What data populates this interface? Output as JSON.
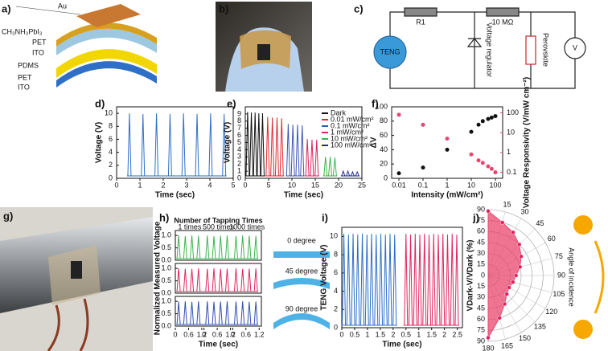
{
  "panel_labels": [
    "a)",
    "b)",
    "c)",
    "d)",
    "e)",
    "f)",
    "g)",
    "h)",
    "i)",
    "j)"
  ],
  "panel_a": {
    "layers": [
      "Au",
      "CH₃NH₃PbI₃",
      "PET",
      "ITO",
      "PDMS",
      "PET",
      "ITO"
    ]
  },
  "panel_c": {
    "labels": [
      "TENG",
      "R1",
      "10 MΩ",
      "Voltage regulator",
      "Perovskite",
      "V"
    ]
  },
  "panel_h_side": {
    "labels": [
      "0 degree",
      "45 degree",
      "90 degree"
    ]
  },
  "panel_j_side": {
    "label": "Angle of incidence"
  },
  "chart_data": [
    {
      "type": "pulse",
      "xlabel": "Time (sec)",
      "ylabel": "Voltage (V)",
      "xlim": [
        0,
        5
      ],
      "xticks": [
        0,
        1,
        2,
        3,
        4,
        5
      ],
      "ylim": [
        0,
        11
      ],
      "yticks": [
        0,
        2,
        4,
        6,
        8,
        10
      ],
      "series": [
        {
          "color": "#2f6fc6",
          "x": [
            0.55,
            1.13,
            1.71,
            2.29,
            2.87,
            3.45,
            4.03,
            4.61
          ],
          "values": [
            10,
            9.9,
            10,
            9.9,
            10,
            9.9,
            10,
            9.9
          ]
        }
      ]
    },
    {
      "type": "pulse",
      "xlabel": "Time (sec)",
      "ylabel": "Voltage (V)",
      "xlim": [
        0,
        25
      ],
      "xticks": [
        0,
        5,
        10,
        15,
        20,
        25
      ],
      "ylim": [
        0,
        10
      ],
      "yticks": [
        0,
        1,
        2,
        3,
        4,
        5,
        6,
        7,
        8,
        9
      ],
      "legend": "upper right",
      "series": [
        {
          "name": "Dark",
          "color": "#111111",
          "x": [
            0.5,
            1.3,
            2.1,
            2.9,
            3.7
          ],
          "values": [
            9.3,
            9.2,
            9.2,
            9.1,
            9.1
          ]
        },
        {
          "name": "0.01 mW/cm²",
          "color": "#e3262f",
          "x": [
            4.8,
            5.8,
            6.8,
            7.8
          ],
          "values": [
            8.6,
            8.5,
            8.5,
            8.4
          ]
        },
        {
          "name": "0.1 mW/cm²",
          "color": "#3a55b4",
          "x": [
            9.2,
            10.2,
            11.2,
            12.2
          ],
          "values": [
            7.6,
            7.5,
            7.5,
            7.4
          ]
        },
        {
          "name": "1 mW/cm²",
          "color": "#e0245e",
          "x": [
            13.3,
            14.3,
            15.3
          ],
          "values": [
            5.5,
            5.4,
            5.4
          ]
        },
        {
          "name": "10 mW/cm²",
          "color": "#3cb44b",
          "x": [
            17.2,
            18.2,
            19.2
          ],
          "values": [
            3,
            3,
            2.9
          ]
        },
        {
          "name": "100 mW/cm²",
          "color": "#1f2a8c",
          "x": [
            21,
            22,
            23,
            24
          ],
          "values": [
            1,
            1,
            0.9,
            0.9
          ]
        }
      ]
    },
    {
      "type": "scatter",
      "xlabel": "Intensity (mW/cm²)",
      "ylabel": "ΔV",
      "y2label": "Voltage Responsivity (V/mW cm⁻²)",
      "xscale": "log",
      "y2scale": "log",
      "xlim": [
        0.005,
        200
      ],
      "xticks": [
        0.01,
        0.1,
        1,
        10,
        100
      ],
      "ylim": [
        0,
        100
      ],
      "yticks": [
        0,
        20,
        40,
        60,
        80,
        100
      ],
      "y2lim": [
        0.05,
        200
      ],
      "y2ticks": [
        0.1,
        1,
        10,
        100
      ],
      "series": [
        {
          "color": "#111111",
          "x": [
            0.01,
            0.1,
            1,
            10,
            20,
            30,
            50,
            70,
            100
          ],
          "values": [
            7,
            15,
            40,
            65,
            75,
            80,
            83,
            85,
            87
          ]
        },
        {
          "color": "#e8466e",
          "axis": "y2",
          "x": [
            0.01,
            0.1,
            1,
            10,
            20,
            30,
            50,
            70,
            100
          ],
          "values": [
            80,
            25,
            5,
            0.8,
            0.4,
            0.3,
            0.2,
            0.15,
            0.1
          ]
        }
      ]
    },
    {
      "type": "bands",
      "title": "Number of Tapping Times",
      "group_labels": [
        "1 times",
        "500 times",
        "1000 times"
      ],
      "xlabel": "Time (sec)",
      "ylabel": "Normalized Measured Voltage",
      "xlim": [
        0,
        3.9
      ],
      "xticks": [
        0,
        0.6,
        1.2,
        {
          "value": 1.3,
          "label": "0"
        },
        {
          "value": 1.9,
          "label": "0.6"
        },
        {
          "value": 2.5,
          "label": "1.2"
        },
        {
          "value": 2.6,
          "label": "0"
        },
        {
          "value": 3.2,
          "label": "0.6"
        },
        {
          "value": 3.8,
          "label": "1.2"
        }
      ],
      "ylim": [
        0,
        1.2
      ],
      "yticks": [
        {
          "value": 0,
          "label": "0.0"
        },
        {
          "value": 0.5,
          "label": "0.5"
        },
        {
          "value": 1,
          "label": "1.0"
        }
      ],
      "series": [
        {
          "color": "#3cb44b",
          "x": [
            0.15,
            0.45,
            0.75,
            1.05,
            1.45,
            1.75,
            2.05,
            2.35,
            2.75,
            3.05,
            3.35,
            3.65
          ],
          "values": [
            1,
            0.98,
            1,
            0.99,
            1,
            0.97,
            0.99,
            1,
            0.98,
            1,
            0.99,
            0.98
          ]
        },
        {
          "color": "#e0245e",
          "x": [
            0.15,
            0.45,
            0.75,
            1.05,
            1.45,
            1.75,
            2.05,
            2.35,
            2.75,
            3.05,
            3.35,
            3.65
          ],
          "values": [
            1,
            0.99,
            0.98,
            1,
            0.99,
            1,
            0.98,
            0.99,
            1,
            0.98,
            0.99,
            1
          ]
        },
        {
          "color": "#2f4fb4",
          "x": [
            0.15,
            0.45,
            0.75,
            1.05,
            1.45,
            1.75,
            2.05,
            2.35,
            2.75,
            3.05,
            3.35,
            3.65
          ],
          "values": [
            0.99,
            1,
            0.98,
            1,
            1,
            0.98,
            0.99,
            1,
            0.99,
            1,
            0.98,
            0.99
          ]
        }
      ]
    },
    {
      "type": "pulse",
      "xlabel": "Time (sec)",
      "ylabel": "TENG Voltage (V)",
      "xlim": [
        0,
        4.7
      ],
      "xticks": [
        0,
        0.5,
        1,
        1.5,
        2,
        {
          "value": 2.5,
          "label": "0.5"
        },
        {
          "value": 3,
          "label": "1"
        },
        {
          "value": 3.5,
          "label": "1.5"
        },
        {
          "value": 4,
          "label": "2"
        },
        {
          "value": 4.5,
          "label": "2.5"
        }
      ],
      "ylim": [
        0,
        11
      ],
      "yticks": [
        0,
        2,
        4,
        6,
        8,
        10
      ],
      "series": [
        {
          "color": "#2f6fc6",
          "x": [
            0.08,
            0.26,
            0.44,
            0.62,
            0.8,
            0.98,
            1.16,
            1.34,
            1.52,
            1.7,
            1.88,
            2.06
          ],
          "values": [
            10.3,
            10.2,
            10.3,
            10.2,
            10.3,
            10.2,
            10.3,
            10.2,
            10.3,
            10.2,
            10.3,
            10.2
          ]
        },
        {
          "color": "#e0245e",
          "x": [
            2.5,
            2.68,
            2.86,
            3.04,
            3.22,
            3.4,
            3.58,
            3.76,
            3.94,
            4.12,
            4.3,
            4.48
          ],
          "values": [
            10.3,
            10.2,
            10.3,
            10.2,
            10.3,
            10.2,
            10.3,
            10.2,
            10.3,
            10.2,
            10.3,
            10.2
          ]
        }
      ]
    },
    {
      "type": "polar",
      "ylabel": "VDark-V/VDark (%)",
      "ylim": [
        0,
        90
      ],
      "yticks": [
        0,
        15,
        30,
        45,
        60,
        75,
        90
      ],
      "xticks": [
        15,
        30,
        45,
        60,
        75,
        90,
        105,
        120,
        135,
        150,
        165,
        180
      ],
      "color": "#e8466e",
      "x": [
        0,
        15,
        30,
        45,
        60,
        75,
        90,
        105,
        120,
        135,
        150,
        165,
        180
      ],
      "values": [
        88,
        75,
        68,
        60,
        52,
        45,
        38,
        35,
        33,
        36,
        45,
        60,
        85
      ]
    }
  ]
}
